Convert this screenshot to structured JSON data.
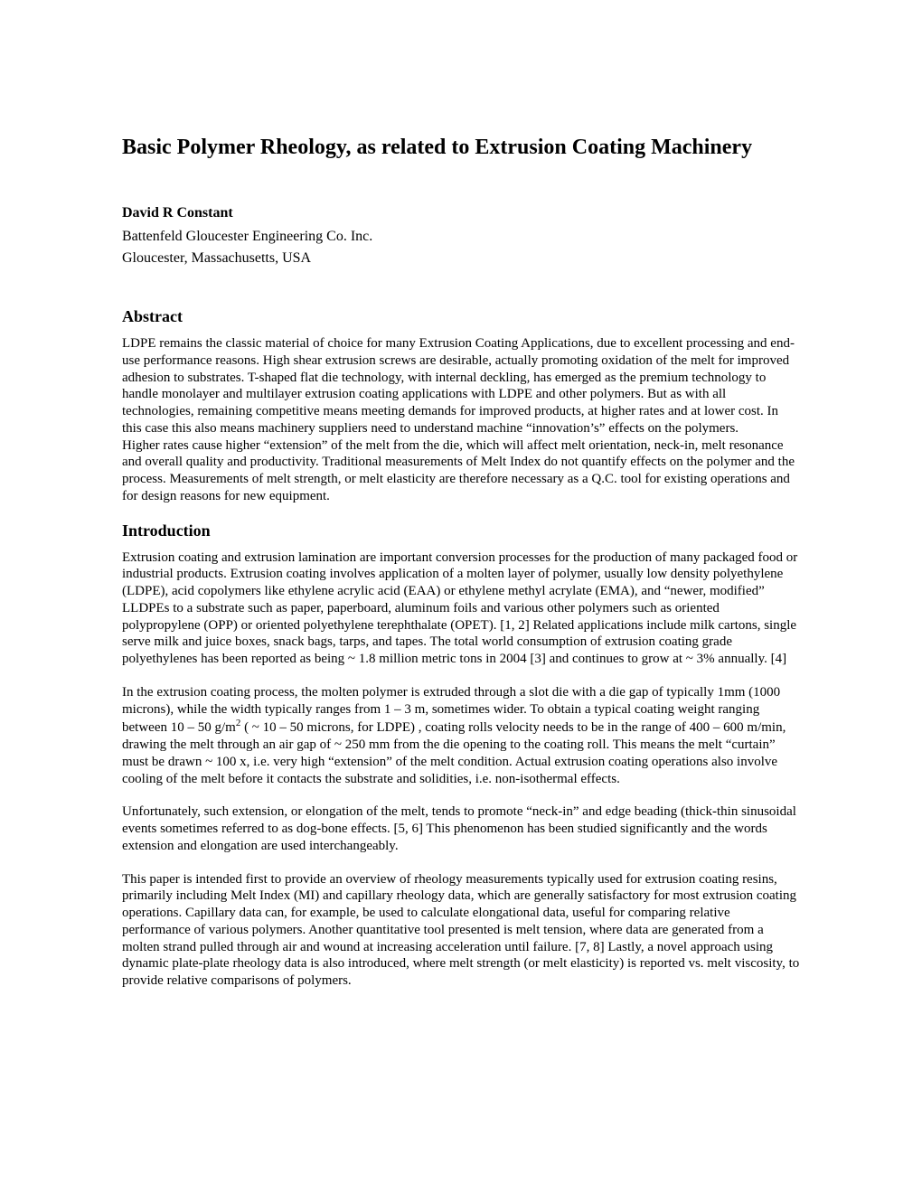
{
  "title": "Basic Polymer Rheology, as related to Extrusion Coating Machinery",
  "author": "David R Constant",
  "affiliation": "Battenfeld Gloucester Engineering Co. Inc.",
  "location": "Gloucester, Massachusetts, USA",
  "section_abstract": "Abstract",
  "abstract_p1": "LDPE remains the classic material of choice for many Extrusion Coating Applications, due to excellent processing and end-use performance reasons.  High shear extrusion screws are desirable, actually promoting oxidation of the melt for improved adhesion to substrates.  T-shaped flat die technology, with internal deckling, has emerged as the premium technology to handle monolayer and multilayer extrusion coating applications with LDPE and other polymers.  But as with all technologies, remaining competitive means meeting demands for improved products, at higher rates and at lower cost.  In this case this also means machinery suppliers need to understand machine “innovation’s” effects on the polymers.",
  "abstract_p2": "Higher rates cause higher “extension” of the melt from the die, which will affect melt orientation, neck-in, melt resonance and overall quality and productivity.  Traditional measurements of Melt Index do not quantify effects on the polymer and the process.  Measurements of melt strength, or melt elasticity are therefore necessary as a Q.C. tool for existing operations and for design reasons for new equipment.",
  "section_intro": "Introduction",
  "intro_p1": "Extrusion coating and extrusion lamination are important conversion processes for the production of many packaged food or industrial products.  Extrusion coating involves application of a molten layer of polymer, usually low density polyethylene (LDPE), acid copolymers like ethylene acrylic acid (EAA) or ethylene methyl acrylate (EMA), and “newer, modified” LLDPEs to a substrate such as paper, paperboard, aluminum foils and various other polymers such as oriented polypropylene (OPP) or oriented polyethylene terephthalate (OPET). [1, 2]   Related applications include milk cartons, single serve milk and juice boxes, snack bags, tarps, and tapes.  The total world consumption of extrusion coating grade polyethylenes has been reported as being ~ 1.8 million metric tons in 2004 [3] and continues to grow at ~ 3% annually. [4]",
  "intro_p2_a": "In the extrusion coating process, the molten polymer is extruded through a slot die with a die gap of typically 1mm (1000 microns), while the width typically ranges from 1 – 3 m, sometimes wider.  To obtain a typical coating weight ranging between 10 – 50 g/m",
  "intro_p2_sup": "2",
  "intro_p2_b": "  ( ~ 10 – 50 microns, for LDPE) , coating rolls velocity needs to be in the range of 400 – 600 m/min,  drawing the melt through an air gap of ~ 250 mm from the die opening to the coating roll.  This means the melt “curtain” must be drawn ~ 100 x, i.e. very high “extension” of the melt condition.  Actual extrusion coating operations also involve cooling of the melt before it contacts the substrate and solidities, i.e. non-isothermal effects.",
  "intro_p3": "Unfortunately, such extension, or elongation of the melt, tends to promote “neck-in” and edge beading (thick-thin sinusoidal events sometimes referred to as dog-bone effects. [5, 6]  This phenomenon has been studied significantly and the words extension and elongation are used interchangeably.",
  "intro_p4": "This paper is intended first to provide an overview of rheology measurements typically used for extrusion coating resins, primarily including Melt Index (MI) and capillary rheology data, which are generally satisfactory for most extrusion coating operations.  Capillary data can, for example, be used to calculate elongational data, useful for comparing relative performance of various polymers.  Another quantitative tool presented is melt tension, where data are generated from a molten strand pulled through air and wound at increasing acceleration until failure. [7, 8]  Lastly, a novel approach using dynamic plate-plate rheology data is also introduced, where melt strength (or melt elasticity) is reported vs. melt viscosity, to provide relative comparisons of polymers."
}
